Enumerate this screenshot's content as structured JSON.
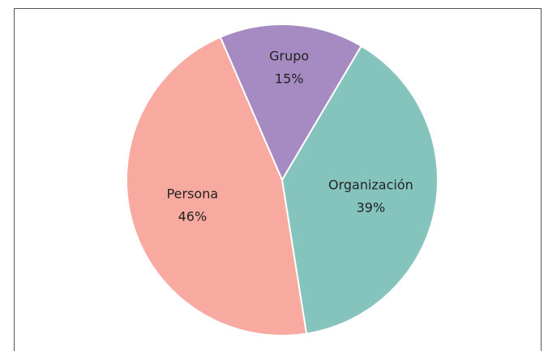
{
  "chart_data": {
    "type": "pie",
    "categories": [
      "Grupo",
      "Organización",
      "Persona"
    ],
    "values": [
      15,
      39,
      46
    ],
    "value_labels": [
      "15%",
      "39%",
      "46%"
    ],
    "colors": [
      "#a68bc2",
      "#85c4bd",
      "#f8a9a0"
    ]
  }
}
